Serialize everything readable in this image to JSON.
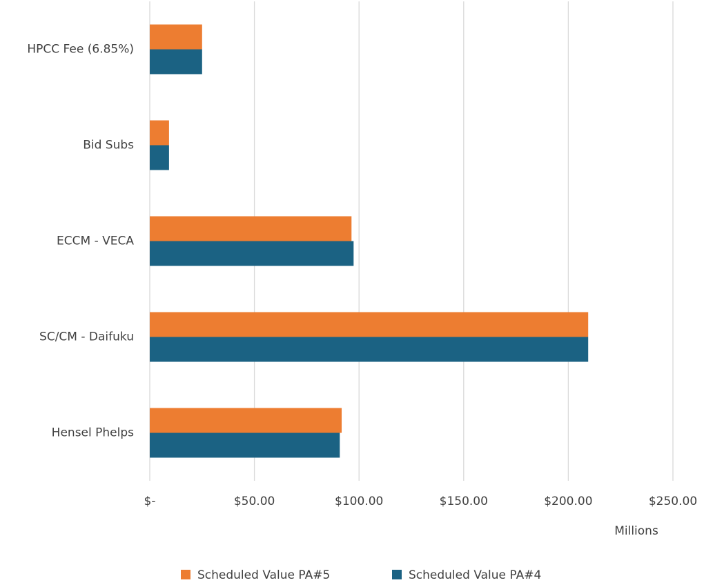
{
  "chart_data": {
    "type": "hbar",
    "x_axis_label": "Millions",
    "categories": [
      "HPCC Fee (6.85%)",
      "Bid Subs",
      "ECCM - VECA",
      "SC/CM - Daifuku",
      "Hensel Phelps"
    ],
    "series": [
      {
        "name": "Scheduled Value PA#5",
        "color": "#ed7d31",
        "values": [
          25,
          9.2,
          96.4,
          209.5,
          91.7
        ]
      },
      {
        "name": "Scheduled Value PA#4",
        "color": "#1b6283",
        "values": [
          25,
          9.2,
          97.4,
          209.5,
          90.8
        ]
      }
    ],
    "xlim": [
      0,
      250
    ],
    "xticks": [
      {
        "value": 0,
        "label": "$-"
      },
      {
        "value": 50,
        "label": "$50.00"
      },
      {
        "value": 100,
        "label": "$100.00"
      },
      {
        "value": 150,
        "label": "$150.00"
      },
      {
        "value": 200,
        "label": "$200.00"
      },
      {
        "value": 250,
        "label": "$250.00"
      }
    ],
    "grid": true
  }
}
